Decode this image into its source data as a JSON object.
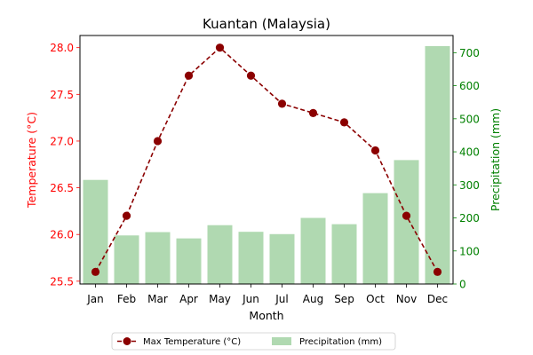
{
  "chart_data": {
    "type": "bar+line",
    "title": "Kuantan (Malaysia)",
    "categories": [
      "Jan",
      "Feb",
      "Mar",
      "Apr",
      "May",
      "Jun",
      "Jul",
      "Aug",
      "Sep",
      "Oct",
      "Nov",
      "Dec"
    ],
    "xlabel": "Month",
    "y_left": {
      "label": "Temperature (°C)",
      "ylim": [
        25.47,
        28.13
      ],
      "ticks": [
        "25.5",
        "26.0",
        "26.5",
        "27.0",
        "27.5",
        "28.0"
      ],
      "color": "#ff0000"
    },
    "y_right": {
      "label": "Precipitation (mm)",
      "ylim": [
        0,
        752
      ],
      "ticks": [
        "0",
        "100",
        "200",
        "300",
        "400",
        "500",
        "600",
        "700"
      ],
      "color": "#008000"
    },
    "series": [
      {
        "name": "Max Temperature (°C)",
        "type": "line",
        "axis": "left",
        "color": "#8b0000",
        "values": [
          25.6,
          26.2,
          27.0,
          27.7,
          28.0,
          27.7,
          27.4,
          27.3,
          27.2,
          26.9,
          26.2,
          25.6
        ]
      },
      {
        "name": "Precipitation (mm)",
        "type": "bar",
        "axis": "right",
        "color": "#b0d9b1",
        "values": [
          315,
          147,
          157,
          138,
          178,
          158,
          151,
          200,
          181,
          275,
          375,
          720
        ]
      }
    ],
    "grid": false,
    "legend": "bottom-center"
  }
}
